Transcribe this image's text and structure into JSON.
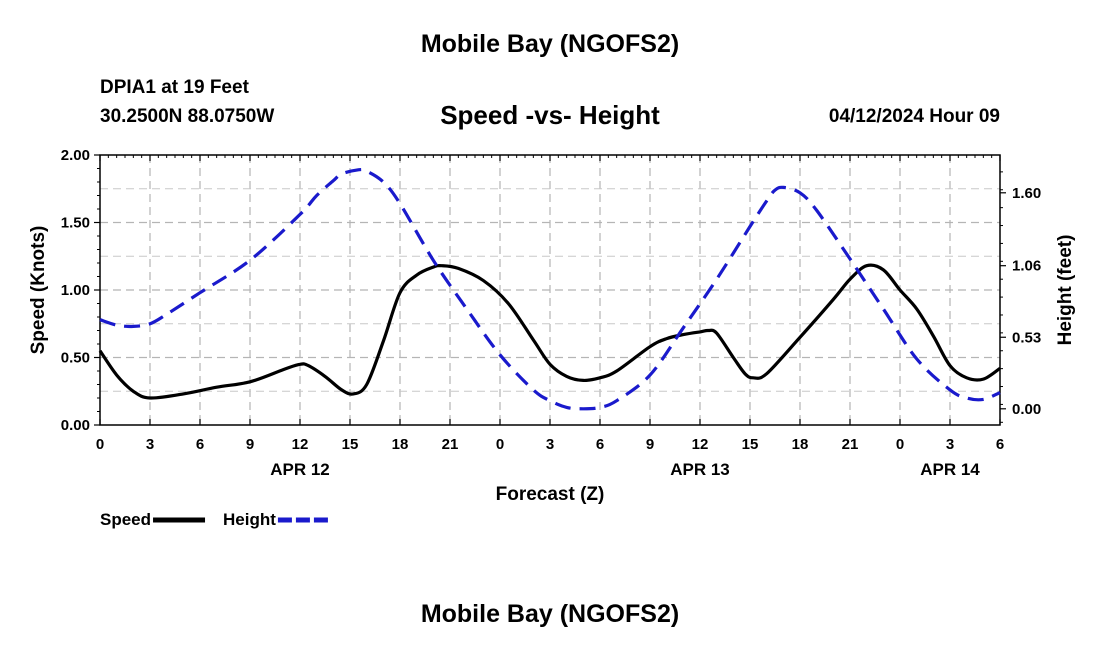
{
  "page": {
    "title_top": "Mobile Bay (NGOFS2)",
    "station": "DPIA1 at 19 Feet",
    "coords": "30.2500N  88.0750W",
    "datetime": "04/12/2024 Hour 09",
    "title_bottom": "Mobile Bay (NGOFS2)"
  },
  "chart_data": {
    "type": "line",
    "title": "Speed -vs- Height",
    "xlabel": "Forecast (Z)",
    "ylabel": "Speed (Knots)",
    "ylabel_right": "Height (feet)",
    "x_hours_range": [
      0,
      54
    ],
    "x_ticks": [
      {
        "hour": 0,
        "label": "0"
      },
      {
        "hour": 3,
        "label": "3"
      },
      {
        "hour": 6,
        "label": "6"
      },
      {
        "hour": 9,
        "label": "9"
      },
      {
        "hour": 12,
        "label": "12"
      },
      {
        "hour": 15,
        "label": "15"
      },
      {
        "hour": 18,
        "label": "18"
      },
      {
        "hour": 21,
        "label": "21"
      },
      {
        "hour": 24,
        "label": "0"
      },
      {
        "hour": 27,
        "label": "3"
      },
      {
        "hour": 30,
        "label": "6"
      },
      {
        "hour": 33,
        "label": "9"
      },
      {
        "hour": 36,
        "label": "12"
      },
      {
        "hour": 39,
        "label": "15"
      },
      {
        "hour": 42,
        "label": "18"
      },
      {
        "hour": 45,
        "label": "21"
      },
      {
        "hour": 48,
        "label": "0"
      },
      {
        "hour": 51,
        "label": "3"
      },
      {
        "hour": 54,
        "label": "6"
      }
    ],
    "date_labels": [
      {
        "hour": 12,
        "label": "APR 12"
      },
      {
        "hour": 36,
        "label": "APR 13"
      },
      {
        "hour": 51,
        "label": "APR 14"
      }
    ],
    "ylim_left": [
      0,
      2.0
    ],
    "yticks_left": [
      {
        "value": 0,
        "label": "0.00"
      },
      {
        "value": 0.5,
        "label": "0.50"
      },
      {
        "value": 1.0,
        "label": "1.00"
      },
      {
        "value": 1.5,
        "label": "1.50"
      },
      {
        "value": 2.0,
        "label": "2.00"
      }
    ],
    "ylim_right": [
      -0.12,
      1.88
    ],
    "yticks_right": [
      {
        "value": 0.0,
        "label": "0.00"
      },
      {
        "value": 0.53,
        "label": "0.53"
      },
      {
        "value": 1.06,
        "label": "1.06"
      },
      {
        "value": 1.6,
        "label": "1.60"
      }
    ],
    "series": [
      {
        "name": "Speed",
        "axis": "left",
        "color": "#000000",
        "dash": false,
        "x": [
          0,
          1,
          2,
          3,
          5,
          7,
          9,
          11,
          12,
          12.5,
          13.5,
          14.5,
          15.2,
          16,
          17,
          18,
          19,
          20,
          20.5,
          21.5,
          23,
          24.5,
          26,
          27,
          28,
          29,
          30,
          31,
          33,
          34,
          35,
          36,
          36.5,
          37,
          38,
          38.7,
          39.2,
          40,
          42,
          44,
          45,
          46,
          47,
          48,
          49,
          50,
          51,
          52,
          53,
          54
        ],
        "values": [
          0.55,
          0.37,
          0.25,
          0.2,
          0.23,
          0.28,
          0.32,
          0.41,
          0.45,
          0.44,
          0.36,
          0.26,
          0.23,
          0.3,
          0.62,
          0.98,
          1.11,
          1.17,
          1.18,
          1.16,
          1.07,
          0.9,
          0.63,
          0.45,
          0.36,
          0.33,
          0.35,
          0.4,
          0.58,
          0.64,
          0.67,
          0.69,
          0.7,
          0.68,
          0.5,
          0.38,
          0.35,
          0.38,
          0.65,
          0.93,
          1.08,
          1.18,
          1.15,
          1.0,
          0.86,
          0.66,
          0.44,
          0.35,
          0.34,
          0.42
        ]
      },
      {
        "name": "Height",
        "axis": "right",
        "color": "#1a1acc",
        "dash": true,
        "x": [
          0,
          1,
          2,
          3,
          4,
          6,
          9,
          12,
          13,
          14,
          14.5,
          15.5,
          16,
          17,
          18,
          20,
          22,
          24,
          26,
          27,
          28,
          29,
          30,
          31,
          33,
          35,
          37,
          39,
          40,
          40.5,
          41,
          42,
          43,
          45,
          47,
          49,
          51,
          52,
          53,
          54
        ],
        "values": [
          0.66,
          0.62,
          0.61,
          0.63,
          0.7,
          0.86,
          1.1,
          1.44,
          1.58,
          1.69,
          1.74,
          1.77,
          1.76,
          1.68,
          1.52,
          1.1,
          0.74,
          0.4,
          0.14,
          0.06,
          0.01,
          0.0,
          0.01,
          0.06,
          0.25,
          0.6,
          0.96,
          1.35,
          1.54,
          1.62,
          1.64,
          1.6,
          1.47,
          1.11,
          0.74,
          0.37,
          0.14,
          0.08,
          0.07,
          0.12
        ]
      }
    ]
  }
}
